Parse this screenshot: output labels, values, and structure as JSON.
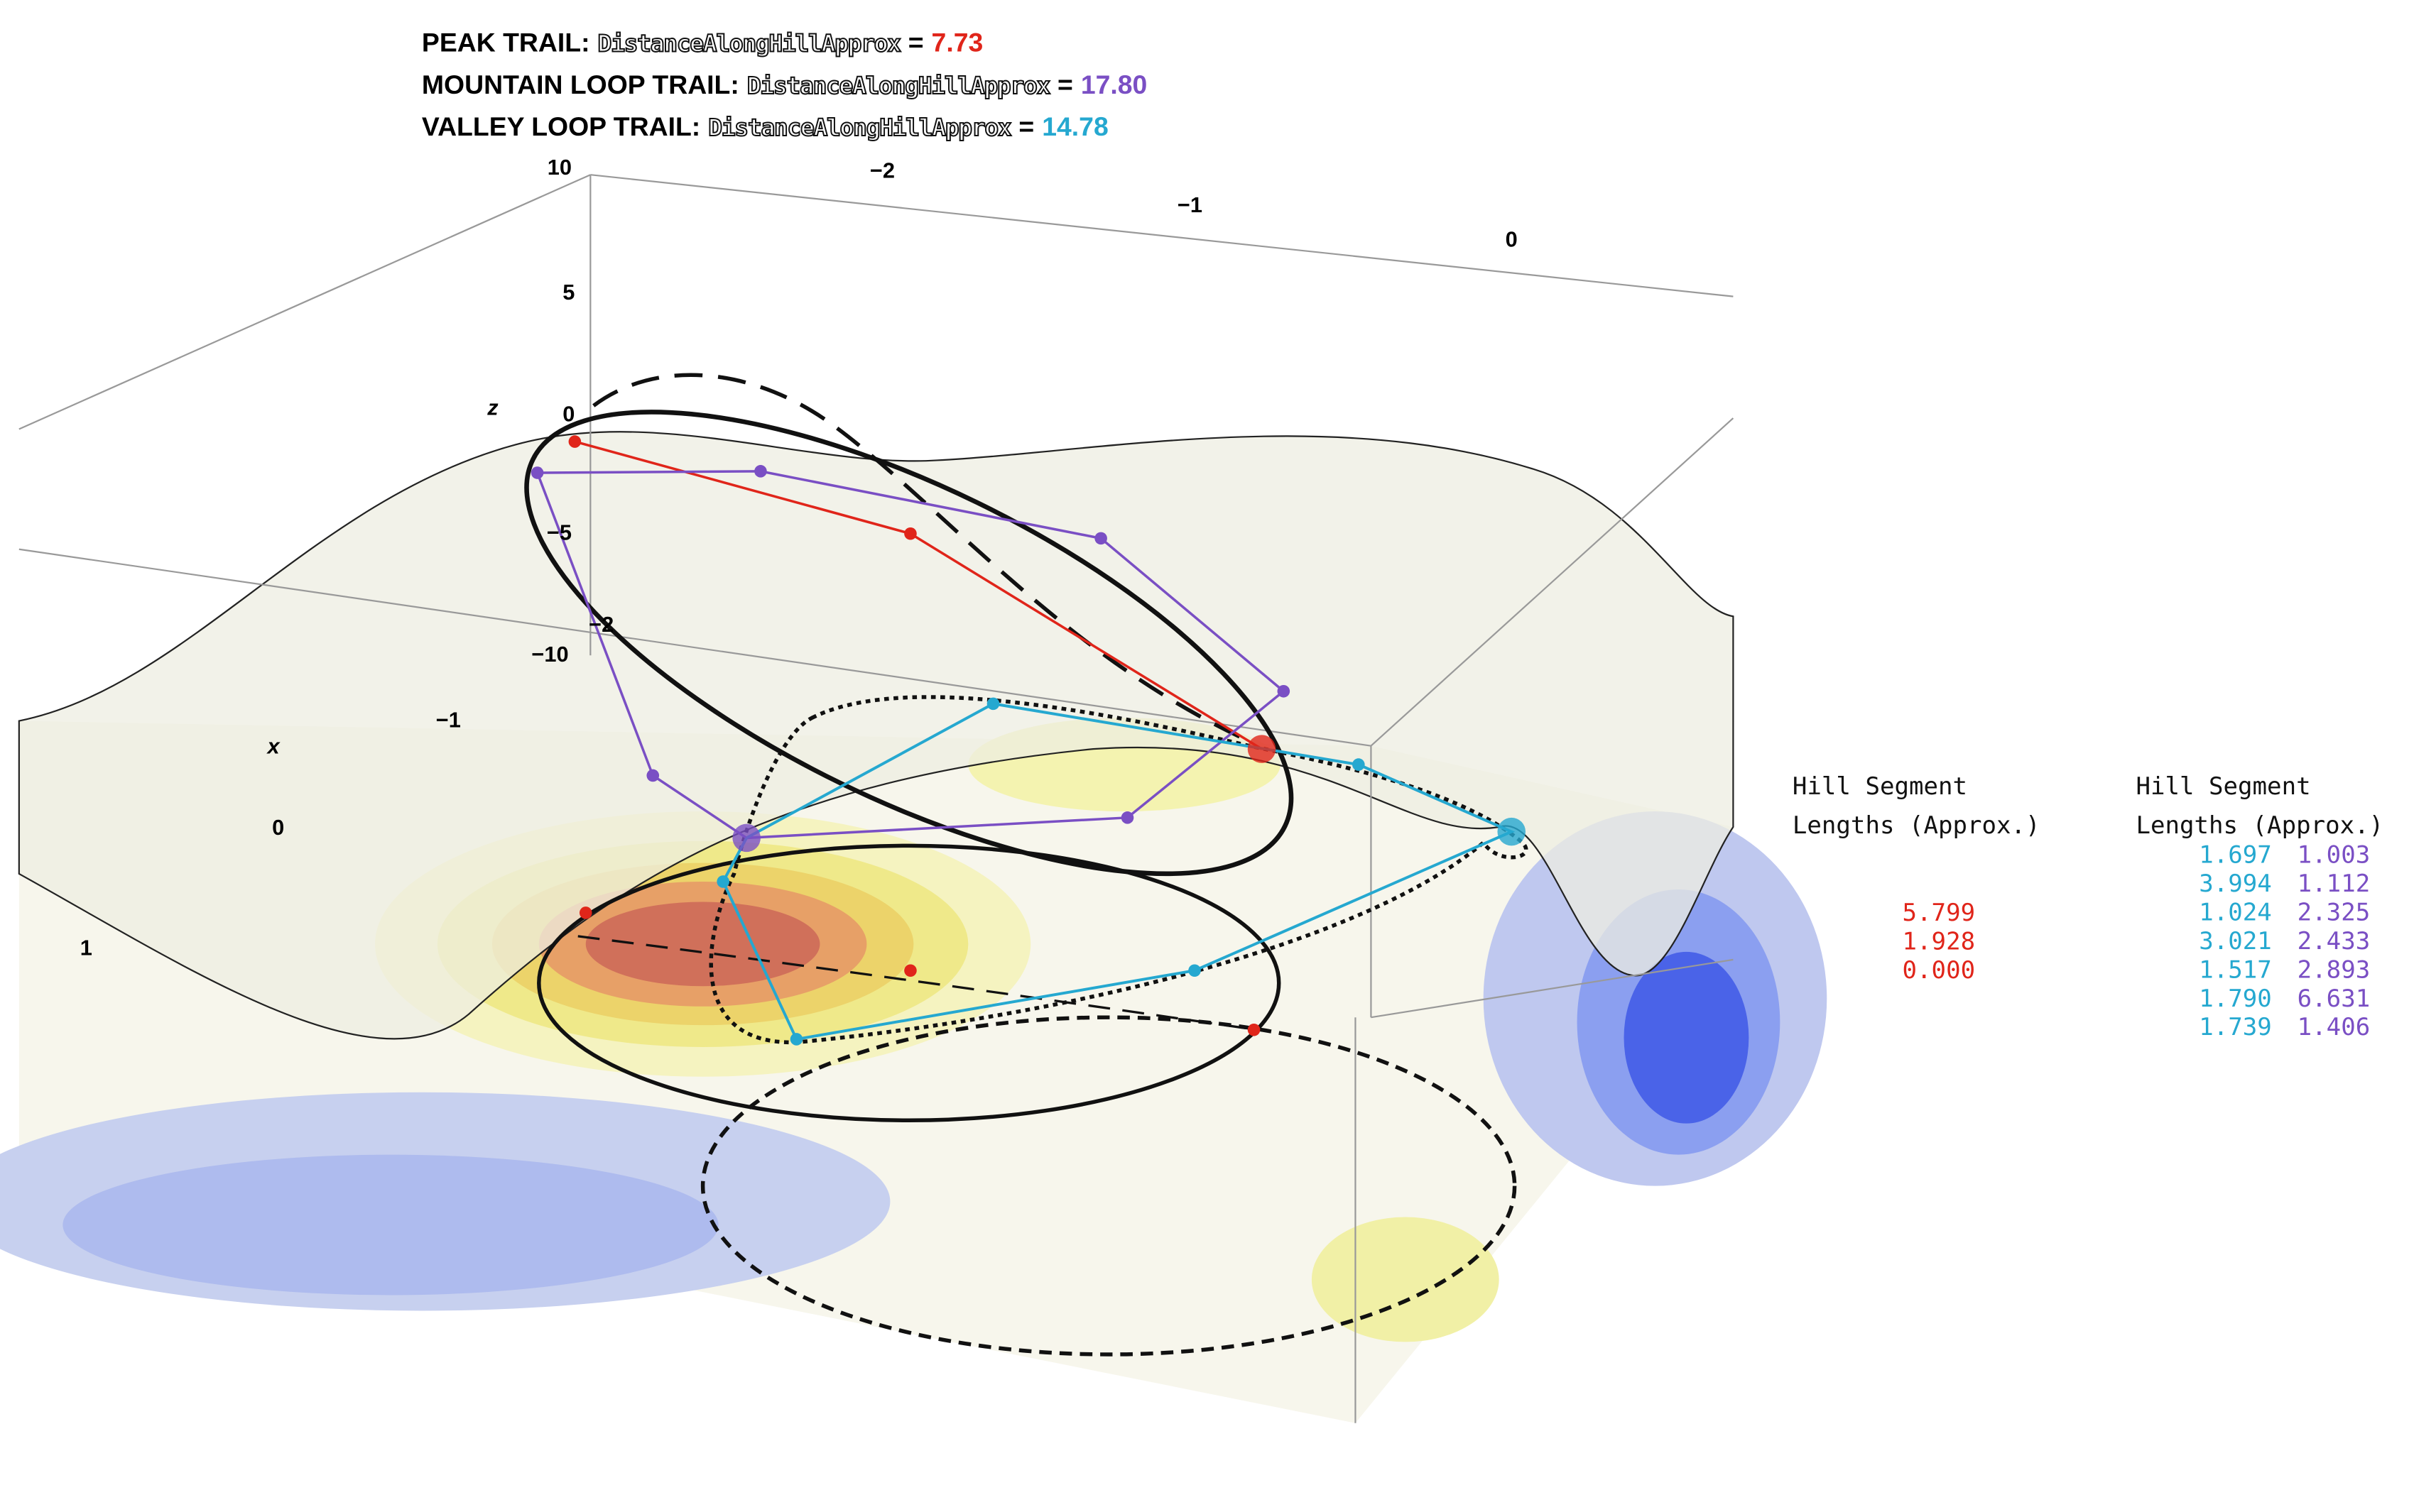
{
  "titles": [
    {
      "label": "PEAK TRAIL:",
      "quantity": "DistanceAlongHillApprox",
      "operator": "=",
      "value": "7.73"
    },
    {
      "label": "MOUNTAIN LOOP TRAIL:",
      "quantity": "DistanceAlongHillApprox",
      "operator": "=",
      "value": "17.80"
    },
    {
      "label": "VALLEY LOOP TRAIL:",
      "quantity": "DistanceAlongHillApprox",
      "operator": "=",
      "value": "14.78"
    }
  ],
  "axes": {
    "z": {
      "label": "z",
      "ticks": [
        "10",
        "5",
        "0",
        "−5",
        "−10"
      ]
    },
    "y": {
      "ticks": [
        "−2",
        "−1",
        "0"
      ]
    },
    "x": {
      "label": "x",
      "ticks": [
        "−2",
        "−1",
        "0",
        "1"
      ]
    }
  },
  "tables": [
    {
      "header": [
        "Hill Segment",
        "Lengths (Approx.)"
      ],
      "rows": [
        [
          "5.799"
        ],
        [
          "1.928"
        ],
        [
          "0.000"
        ]
      ]
    },
    {
      "header": [
        "Hill Segment",
        "Lengths (Approx.)"
      ],
      "rows": [
        [
          "1.697",
          "1.003"
        ],
        [
          "3.994",
          "1.112"
        ],
        [
          "1.024",
          "2.325"
        ],
        [
          "3.021",
          "2.433"
        ],
        [
          "1.517",
          "2.893"
        ],
        [
          "1.790",
          "6.631"
        ],
        [
          "1.739",
          "1.406"
        ]
      ]
    }
  ]
}
